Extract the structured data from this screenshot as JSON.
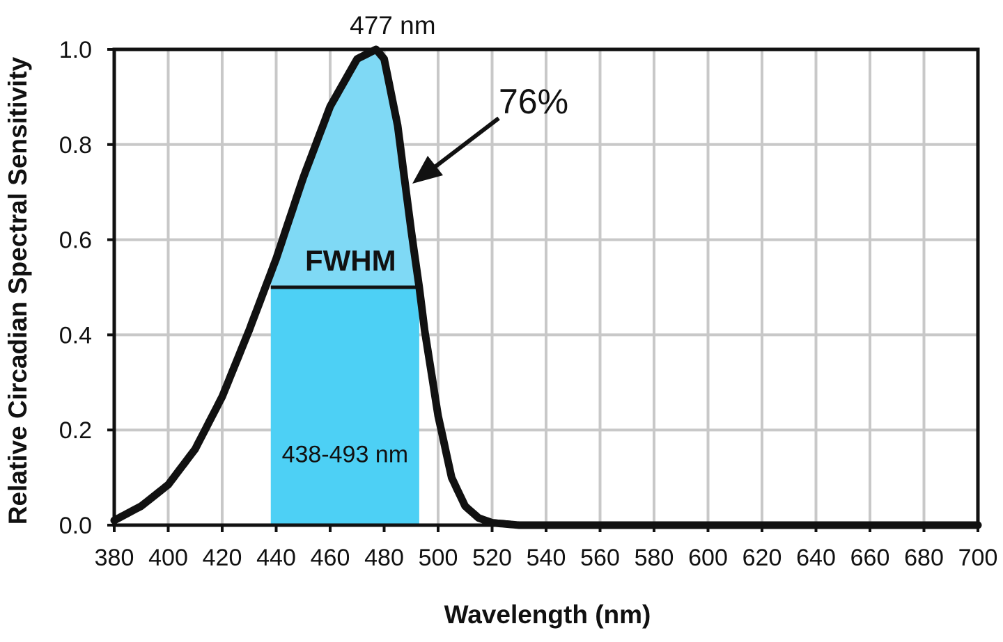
{
  "chart_data": {
    "type": "line",
    "title": "",
    "xlabel": "Wavelength (nm)",
    "ylabel": "Relative Circadian Spectral Sensitivity",
    "xlim": [
      380,
      700
    ],
    "ylim": [
      0,
      1
    ],
    "grid": true,
    "x_ticks": [
      380,
      400,
      420,
      440,
      460,
      480,
      500,
      520,
      540,
      560,
      580,
      600,
      620,
      640,
      660,
      680,
      700
    ],
    "y_ticks": [
      "0.0",
      "0.2",
      "0.4",
      "0.6",
      "0.8",
      "1.0"
    ],
    "series": [
      {
        "name": "Relative circadian spectral sensitivity",
        "x": [
          380,
          390,
          400,
          410,
          420,
          430,
          440,
          450,
          460,
          470,
          477,
          480,
          485,
          490,
          493,
          495,
          500,
          505,
          510,
          515,
          520,
          530,
          540,
          560,
          600,
          650,
          700
        ],
        "values": [
          0.01,
          0.04,
          0.085,
          0.16,
          0.27,
          0.41,
          0.56,
          0.73,
          0.88,
          0.98,
          1.0,
          0.98,
          0.84,
          0.62,
          0.5,
          0.41,
          0.23,
          0.1,
          0.04,
          0.015,
          0.005,
          0.0,
          0.0,
          0.0,
          0.0,
          0.0,
          0.0
        ]
      }
    ],
    "annotations": {
      "peak_label": "477 nm",
      "peak_x": 477,
      "percent_label": "76%",
      "fwhm_label": "FWHM",
      "fwhm_level": 0.5,
      "range_label": "438-493 nm",
      "range_start": 438,
      "range_end": 493
    },
    "colors": {
      "band": "#4dd0f5",
      "upper_fill": "#7fd9f5",
      "curve": "#111111",
      "grid": "#c8c8c8",
      "frame": "#111111"
    }
  }
}
